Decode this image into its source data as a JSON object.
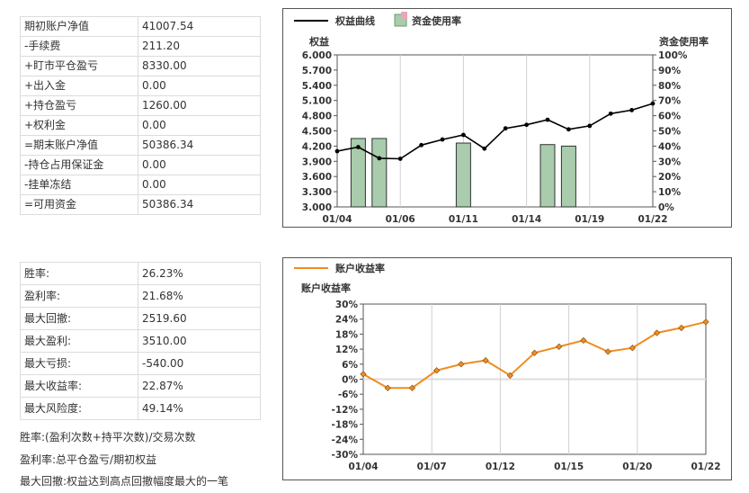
{
  "account_summary": {
    "rows": [
      {
        "label": "期初账户净值",
        "value": "41007.54"
      },
      {
        "label": "-手续费",
        "value": "211.20"
      },
      {
        "label": "+盯市平仓盈亏",
        "value": "8330.00"
      },
      {
        "label": "+出入金",
        "value": "0.00"
      },
      {
        "label": "+持仓盈亏",
        "value": "1260.00"
      },
      {
        "label": "+权利金",
        "value": "0.00"
      },
      {
        "label": "=期末账户净值",
        "value": "50386.34"
      },
      {
        "label": "-持仓占用保证金",
        "value": "0.00"
      },
      {
        "label": "-挂单冻结",
        "value": "0.00"
      },
      {
        "label": "=可用资金",
        "value": "50386.34"
      }
    ]
  },
  "performance": {
    "rows": [
      {
        "label": "胜率:",
        "value": "26.23%"
      },
      {
        "label": "盈利率:",
        "value": "21.68%"
      },
      {
        "label": "最大回撤:",
        "value": "2519.60"
      },
      {
        "label": "最大盈利:",
        "value": "3510.00"
      },
      {
        "label": "最大亏损:",
        "value": "-540.00"
      },
      {
        "label": "最大收益率:",
        "value": "22.87%"
      },
      {
        "label": "最大风险度:",
        "value": "49.14%"
      }
    ]
  },
  "notes": [
    "胜率:(盈利次数+持平次数)/交易次数",
    "盈利率:总平仓盈亏/期初权益",
    "最大回撤:权益达到高点回撤幅度最大的一笔"
  ],
  "colors": {
    "equity_line": "#000000",
    "margin_bar": "#a8ccac",
    "margin_legend": "#e8a8b8",
    "return_line": "#f08c1e",
    "grid": "#d0d0d0"
  },
  "chart_data": [
    {
      "type": "line",
      "legend": [
        "权益曲线",
        "资金使用率"
      ],
      "ylabel": "权益",
      "y2label": "资金使用率",
      "ylim": [
        3.0,
        6.0
      ],
      "y2lim": [
        0,
        100
      ],
      "yticks": [
        "6.000",
        "5.700",
        "5.400",
        "5.100",
        "4.800",
        "4.500",
        "4.200",
        "3.900",
        "3.600",
        "3.300",
        "3.000"
      ],
      "y2ticks": [
        "100%",
        "90%",
        "80%",
        "70%",
        "60%",
        "50%",
        "40%",
        "30%",
        "20%",
        "10%",
        "0%"
      ],
      "xticks": [
        "01/04",
        "01/06",
        "01/11",
        "01/14",
        "01/19",
        "01/22"
      ],
      "series": [
        {
          "name": "权益曲线",
          "values": [
            4.1,
            4.18,
            3.96,
            3.95,
            4.22,
            4.33,
            4.42,
            4.15,
            4.55,
            4.62,
            4.72,
            4.53,
            4.6,
            4.84,
            4.91,
            5.04
          ]
        },
        {
          "name": "资金使用率",
          "values": [
            0,
            45,
            45,
            0,
            0,
            0,
            42,
            0,
            0,
            0,
            41,
            40,
            0,
            0,
            0,
            0
          ]
        }
      ]
    },
    {
      "type": "line",
      "legend": [
        "账户收益率"
      ],
      "ylabel": "账户收益率",
      "ylim": [
        -30,
        30
      ],
      "yticks": [
        "30%",
        "24%",
        "18%",
        "12%",
        "6%",
        "0%",
        "-6%",
        "-12%",
        "-18%",
        "-24%",
        "-30%"
      ],
      "xticks": [
        "01/04",
        "01/07",
        "01/12",
        "01/15",
        "01/20",
        "01/22"
      ],
      "series": [
        {
          "name": "账户收益率",
          "values": [
            2.0,
            -3.5,
            -3.5,
            3.5,
            6.0,
            7.5,
            1.5,
            10.5,
            13.0,
            15.5,
            11.0,
            12.5,
            18.5,
            20.5,
            22.87
          ]
        }
      ]
    }
  ]
}
